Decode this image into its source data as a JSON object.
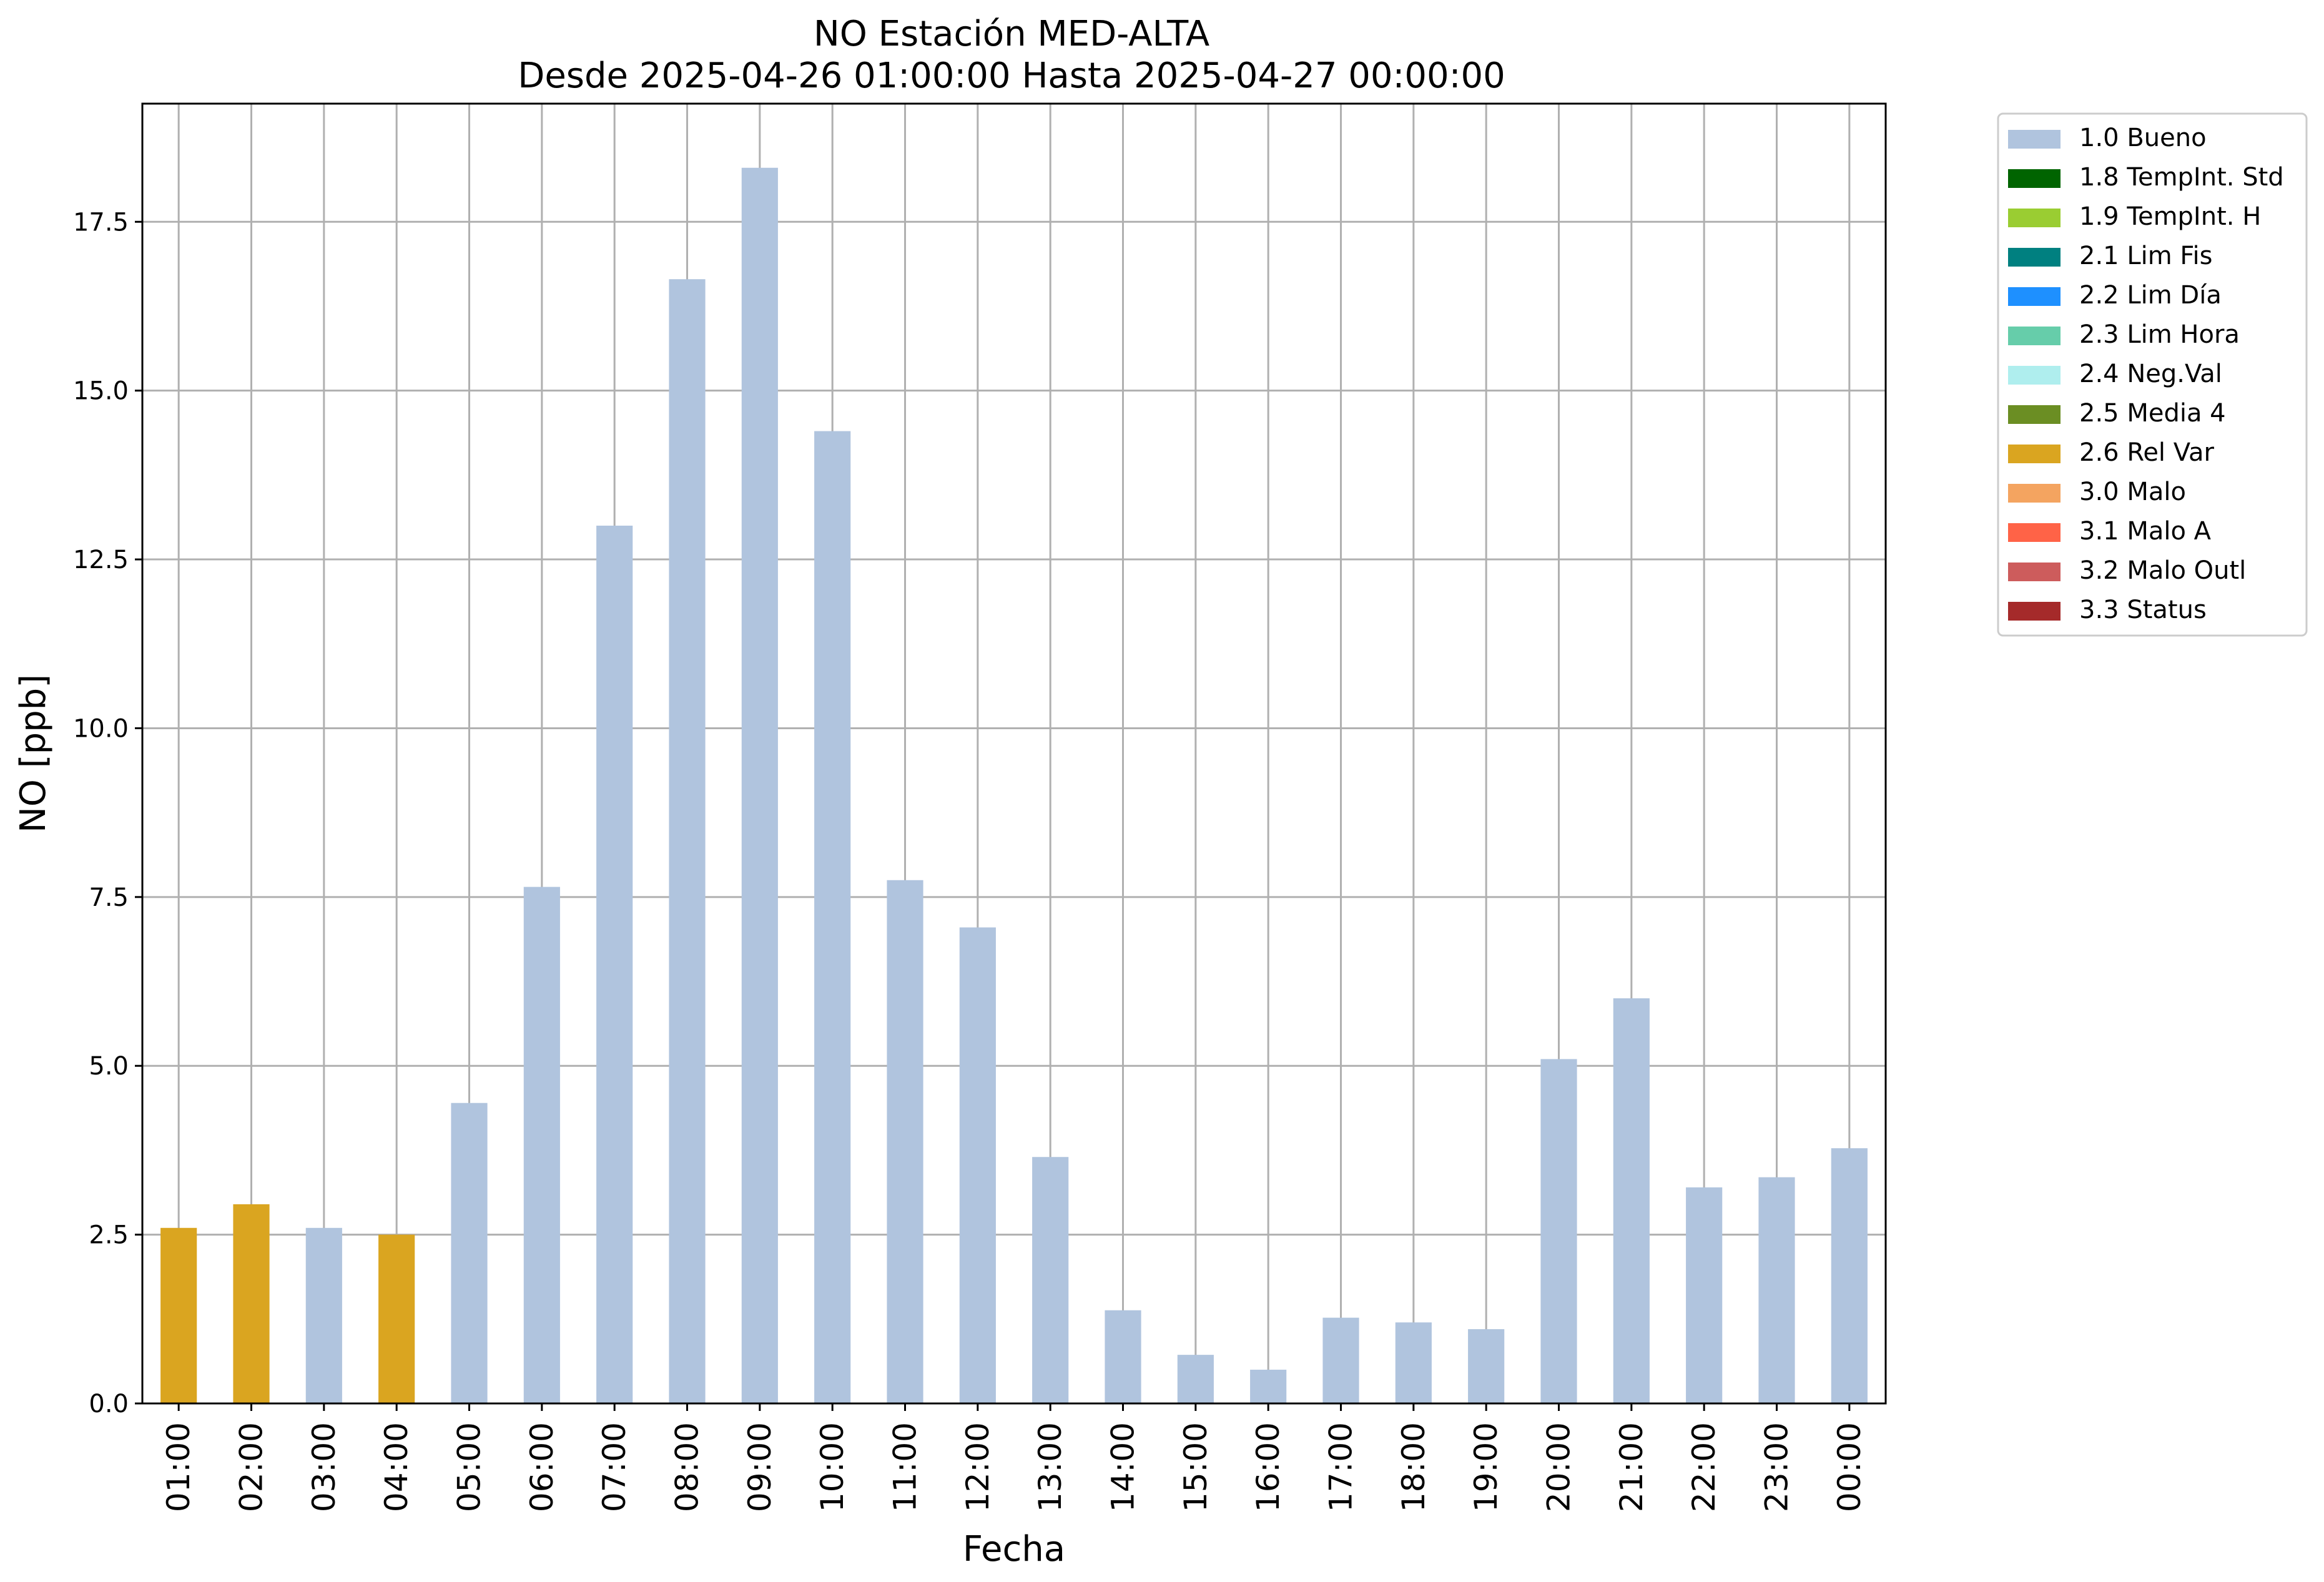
{
  "chart_data": {
    "type": "bar",
    "title_lines": [
      "NO Estación MED-ALTA",
      "Desde 2025-04-26 01:00:00 Hasta 2025-04-27 00:00:00"
    ],
    "xlabel": "Fecha",
    "ylabel": "NO [ppb]",
    "ylim": [
      0,
      19.25
    ],
    "yticks": [
      0,
      2.5,
      5,
      7.5,
      10,
      12.5,
      15,
      17.5
    ],
    "ytick_labels": [
      "0.0",
      "2.5",
      "5.0",
      "7.5",
      "10.0",
      "12.5",
      "15.0",
      "17.5"
    ],
    "grid": true,
    "legend_position": "outside-top-right",
    "categories": [
      "01:00",
      "02:00",
      "03:00",
      "04:00",
      "05:00",
      "06:00",
      "07:00",
      "08:00",
      "09:00",
      "10:00",
      "11:00",
      "12:00",
      "13:00",
      "14:00",
      "15:00",
      "16:00",
      "17:00",
      "18:00",
      "19:00",
      "20:00",
      "21:00",
      "22:00",
      "23:00",
      "00:00"
    ],
    "values": [
      2.6,
      2.95,
      2.6,
      2.5,
      4.45,
      7.65,
      13.0,
      16.65,
      18.3,
      14.4,
      7.75,
      7.05,
      3.65,
      1.38,
      0.72,
      0.5,
      1.27,
      1.2,
      1.1,
      5.1,
      6.0,
      3.2,
      3.35,
      3.78
    ],
    "flags": [
      "2.6 Rel Var",
      "2.6 Rel Var",
      "1.0 Bueno",
      "2.6 Rel Var",
      "1.0 Bueno",
      "1.0 Bueno",
      "1.0 Bueno",
      "1.0 Bueno",
      "1.0 Bueno",
      "1.0 Bueno",
      "1.0 Bueno",
      "1.0 Bueno",
      "1.0 Bueno",
      "1.0 Bueno",
      "1.0 Bueno",
      "1.0 Bueno",
      "1.0 Bueno",
      "1.0 Bueno",
      "1.0 Bueno",
      "1.0 Bueno",
      "1.0 Bueno",
      "1.0 Bueno",
      "1.0 Bueno",
      "1.0 Bueno"
    ],
    "legend": [
      {
        "label": "1.0 Bueno",
        "color": "#b0c4de"
      },
      {
        "label": "1.8 TempInt. Std",
        "color": "#006400"
      },
      {
        "label": "1.9 TempInt. H",
        "color": "#9acd32"
      },
      {
        "label": "2.1 Lim Fis",
        "color": "#008080"
      },
      {
        "label": "2.2 Lim Día",
        "color": "#1e90ff"
      },
      {
        "label": "2.3 Lim Hora",
        "color": "#66cdaa"
      },
      {
        "label": "2.4 Neg.Val",
        "color": "#afeeee"
      },
      {
        "label": "2.5 Media 4",
        "color": "#6b8e23"
      },
      {
        "label": "2.6 Rel Var",
        "color": "#daa520"
      },
      {
        "label": "3.0 Malo",
        "color": "#f4a460"
      },
      {
        "label": "3.1 Malo A",
        "color": "#ff6347"
      },
      {
        "label": "3.2 Malo Outl",
        "color": "#cd5c5c"
      },
      {
        "label": "3.3 Status",
        "color": "#a52a2a"
      }
    ]
  }
}
